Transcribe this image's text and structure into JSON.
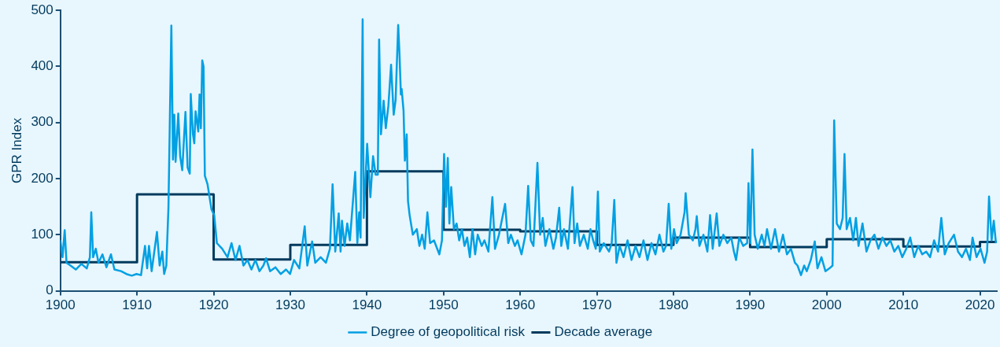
{
  "chart_data": {
    "type": "line",
    "ylabel": "GPR Index",
    "xlim": [
      1900,
      2022.2
    ],
    "xticks": [
      1900,
      1910,
      1920,
      1930,
      1940,
      1950,
      1960,
      1970,
      1980,
      1990,
      2000,
      2010,
      2020
    ],
    "ylim": [
      0,
      500
    ],
    "yticks": [
      0,
      100,
      200,
      300,
      400,
      500
    ],
    "legend": "bottom",
    "grid": false,
    "series": [
      {
        "name": "Degree of geopolitical risk",
        "color": "#00a0e3",
        "x": [
          1900.0,
          1900.28,
          1900.56,
          1900.8,
          1901.32,
          1902.01,
          1902.74,
          1903.44,
          1903.85,
          1904.03,
          1904.27,
          1904.62,
          1904.97,
          1905.49,
          1906.01,
          1906.6,
          1907.05,
          1907.92,
          1908.61,
          1909.31,
          1909.93,
          1910.52,
          1911.04,
          1911.32,
          1911.56,
          1911.91,
          1912.6,
          1912.95,
          1913.3,
          1913.54,
          1913.82,
          1914.1,
          1914.48,
          1914.69,
          1914.86,
          1915.03,
          1915.38,
          1915.63,
          1915.9,
          1916.32,
          1916.6,
          1916.88,
          1917.01,
          1917.29,
          1917.47,
          1917.64,
          1917.99,
          1918.16,
          1918.33,
          1918.51,
          1918.68,
          1918.85,
          1919.2,
          1919.72,
          1920.07,
          1920.42,
          1921.11,
          1921.81,
          1922.33,
          1922.85,
          1923.37,
          1923.89,
          1924.41,
          1924.93,
          1925.45,
          1925.97,
          1926.49,
          1926.84,
          1927.36,
          1928.06,
          1928.75,
          1929.44,
          1929.97,
          1930.49,
          1931.18,
          1931.88,
          1932.22,
          1932.85,
          1933.26,
          1933.96,
          1934.65,
          1935.17,
          1935.52,
          1935.87,
          1936.32,
          1936.56,
          1936.74,
          1937.08,
          1937.43,
          1937.78,
          1938.47,
          1938.75,
          1938.99,
          1939.17,
          1939.44,
          1939.58,
          1940.03,
          1940.45,
          1940.8,
          1941.14,
          1941.42,
          1941.59,
          1941.83,
          1942.18,
          1942.46,
          1942.8,
          1943.15,
          1943.49,
          1943.74,
          1944.08,
          1944.26,
          1944.43,
          1944.53,
          1944.78,
          1944.95,
          1945.19,
          1945.36,
          1945.57,
          1945.99,
          1946.51,
          1946.85,
          1947.2,
          1947.54,
          1947.89,
          1948.24,
          1948.75,
          1949.45,
          1949.79,
          1950.07,
          1950.31,
          1950.55,
          1950.76,
          1951.0,
          1951.35,
          1951.7,
          1952.04,
          1952.39,
          1952.73,
          1953.08,
          1953.43,
          1953.77,
          1954.12,
          1954.46,
          1954.98,
          1955.33,
          1955.85,
          1956.37,
          1956.71,
          1957.23,
          1958.03,
          1958.44,
          1958.79,
          1959.31,
          1959.65,
          1960.17,
          1960.69,
          1961.04,
          1961.38,
          1961.73,
          1962.25,
          1962.6,
          1962.94,
          1963.29,
          1963.81,
          1964.33,
          1964.67,
          1965.09,
          1965.36,
          1965.71,
          1966.23,
          1966.82,
          1967.09,
          1967.44,
          1967.79,
          1968.3,
          1968.82,
          1969.17,
          1969.52,
          1969.86,
          1970.14,
          1970.38,
          1970.9,
          1971.59,
          1971.94,
          1972.28,
          1972.56,
          1972.98,
          1973.49,
          1974.01,
          1974.53,
          1975.05,
          1975.57,
          1976.09,
          1976.61,
          1977.13,
          1977.65,
          1978.17,
          1978.69,
          1979.03,
          1979.38,
          1979.72,
          1980.07,
          1980.42,
          1980.93,
          1981.45,
          1981.59,
          1982.01,
          1982.53,
          1982.87,
          1983.04,
          1983.39,
          1983.91,
          1984.43,
          1984.78,
          1985.12,
          1985.64,
          1985.99,
          1986.51,
          1987.02,
          1987.54,
          1987.89,
          1988.17,
          1988.58,
          1989.1,
          1989.62,
          1989.79,
          1990.03,
          1990.31,
          1990.59,
          1991.0,
          1991.52,
          1991.87,
          1992.21,
          1992.73,
          1993.25,
          1993.77,
          1994.29,
          1994.81,
          1995.33,
          1995.85,
          1996.19,
          1996.64,
          1997.06,
          1997.4,
          1997.92,
          1998.44,
          1998.79,
          1999.31,
          1999.83,
          2000.35,
          2000.76,
          2000.97,
          2001.31,
          2001.73,
          2002.08,
          2002.32,
          2002.6,
          2003.04,
          2003.46,
          2003.81,
          2004.15,
          2004.67,
          2005.19,
          2005.71,
          2006.23,
          2006.75,
          2007.27,
          2007.79,
          2008.3,
          2008.82,
          2009.34,
          2009.86,
          2010.38,
          2010.9,
          2011.42,
          2011.94,
          2012.46,
          2012.98,
          2013.49,
          2014.01,
          2014.53,
          2014.95,
          2015.4,
          2015.92,
          2016.61,
          2017.13,
          2017.65,
          2018.17,
          2018.69,
          2019.03,
          2019.55,
          2020.07,
          2020.59,
          2020.93,
          2021.18,
          2021.52,
          2021.8,
          2022.08
        ],
        "values": [
          90,
          60,
          108,
          50,
          45,
          38,
          48,
          40,
          60,
          140,
          60,
          75,
          50,
          65,
          42,
          65,
          38,
          35,
          30,
          27,
          30,
          28,
          80,
          40,
          80,
          35,
          105,
          45,
          70,
          30,
          45,
          148,
          473,
          234,
          314,
          230,
          316,
          240,
          215,
          319,
          220,
          209,
          351,
          280,
          263,
          320,
          284,
          350,
          290,
          411,
          400,
          205,
          190,
          145,
          135,
          85,
          75,
          60,
          85,
          55,
          80,
          45,
          55,
          38,
          55,
          35,
          45,
          58,
          35,
          42,
          30,
          38,
          30,
          55,
          40,
          115,
          45,
          88,
          50,
          60,
          50,
          75,
          190,
          70,
          138,
          70,
          125,
          80,
          120,
          90,
          212,
          85,
          140,
          95,
          484,
          130,
          262,
          167,
          240,
          207,
          207,
          448,
          279,
          339,
          290,
          330,
          403,
          314,
          340,
          474,
          418,
          350,
          360,
          321,
          232,
          279,
          160,
          135,
          100,
          110,
          80,
          100,
          75,
          140,
          85,
          90,
          65,
          90,
          244,
          150,
          237,
          120,
          185,
          110,
          120,
          90,
          110,
          80,
          95,
          60,
          110,
          65,
          100,
          80,
          90,
          70,
          167,
          75,
          100,
          155,
          85,
          100,
          80,
          90,
          65,
          100,
          187,
          90,
          80,
          228,
          100,
          130,
          80,
          110,
          75,
          95,
          148,
          80,
          110,
          75,
          185,
          85,
          120,
          80,
          100,
          75,
          110,
          90,
          75,
          177,
          70,
          85,
          70,
          85,
          162,
          50,
          80,
          60,
          90,
          55,
          80,
          60,
          90,
          55,
          85,
          65,
          100,
          70,
          80,
          155,
          75,
          110,
          85,
          100,
          140,
          174,
          100,
          90,
          110,
          133,
          80,
          100,
          70,
          135,
          75,
          138,
          80,
          100,
          85,
          95,
          70,
          55,
          95,
          80,
          85,
          192,
          85,
          252,
          100,
          75,
          100,
          80,
          110,
          75,
          110,
          70,
          100,
          65,
          75,
          50,
          45,
          28,
          45,
          35,
          55,
          88,
          40,
          60,
          35,
          40,
          45,
          304,
          120,
          110,
          130,
          244,
          110,
          130,
          90,
          130,
          80,
          120,
          70,
          90,
          100,
          75,
          95,
          80,
          90,
          70,
          80,
          60,
          75,
          95,
          60,
          80,
          65,
          70,
          60,
          90,
          70,
          130,
          65,
          85,
          100,
          70,
          60,
          75,
          55,
          95,
          60,
          75,
          50,
          70,
          168,
          90,
          125,
          85
        ]
      },
      {
        "name": "Decade average",
        "color": "#003a5d",
        "type": "step",
        "x": [
          1900,
          1910,
          1920,
          1930,
          1940,
          1950,
          1960,
          1970,
          1980,
          1990,
          2000,
          2010,
          2020,
          2022.2
        ],
        "values": [
          51,
          172,
          56,
          82,
          213,
          109,
          106,
          82,
          95,
          78,
          92,
          79,
          87,
          87
        ]
      }
    ]
  }
}
